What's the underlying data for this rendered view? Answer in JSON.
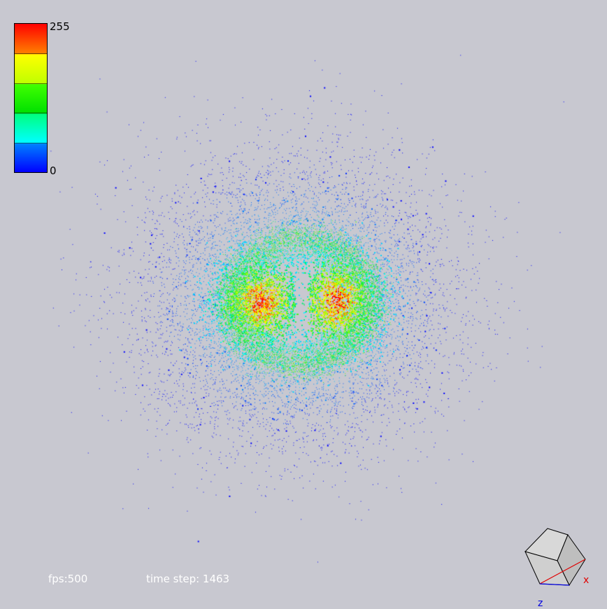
{
  "colorbar": {
    "max_label": "255",
    "min_label": "0",
    "colors": [
      "#ff0000",
      "#ff8000",
      "#ffff00",
      "#40ff00",
      "#00ff80",
      "#00ffff",
      "#0080ff",
      "#0000ff"
    ]
  },
  "hud": {
    "fps_text": "fps:500",
    "timestep_text": "time step: 1463"
  },
  "axes": {
    "x_label": "x",
    "z_label": "z",
    "x_color": "#e00000",
    "z_color": "#0000e0"
  },
  "scene": {
    "background": "#c8c8d0",
    "value_range": [
      0,
      255
    ]
  }
}
